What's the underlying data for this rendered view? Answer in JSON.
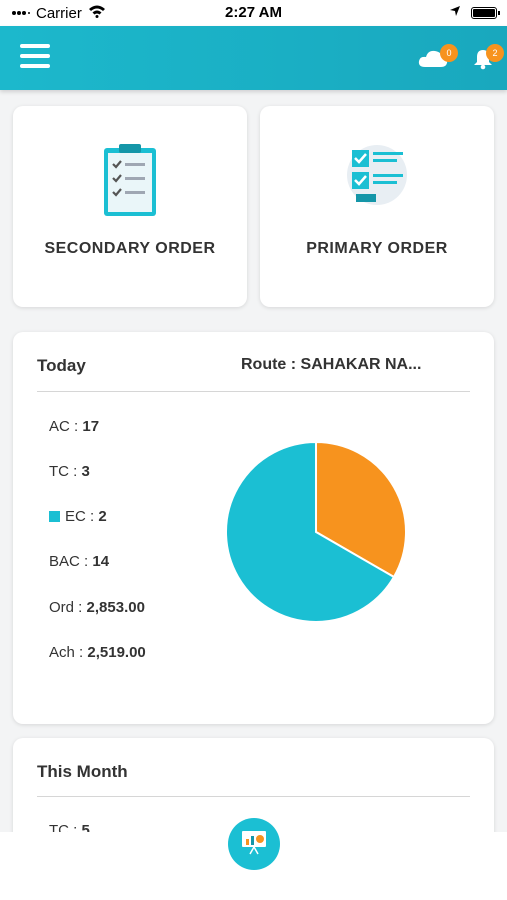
{
  "status_bar": {
    "carrier": "Carrier",
    "time": "2:27 AM"
  },
  "header": {
    "menu_icon": "hamburger-icon",
    "sync_icon": "cloud-icon",
    "sync_badge": "0",
    "notif_icon": "bell-icon",
    "notif_badge": "2"
  },
  "orders": {
    "secondary_label": "SECONDARY ORDER",
    "primary_label": "PRIMARY ORDER"
  },
  "today": {
    "title": "Today",
    "route": "Route : SAHAKAR NA...",
    "stats": [
      {
        "label": "AC",
        "value": "17"
      },
      {
        "label": "TC",
        "value": "3"
      },
      {
        "label": "EC",
        "value": "2"
      },
      {
        "label": "BAC",
        "value": "14"
      },
      {
        "label": "Ord",
        "value": "2,853.00"
      },
      {
        "label": "Ach",
        "value": "2,519.00"
      }
    ]
  },
  "chart_data": {
    "type": "pie",
    "slices": [
      {
        "value": 2,
        "color": "#f7931e"
      },
      {
        "value": 4,
        "color": "#1bbfd3"
      }
    ]
  },
  "month": {
    "title": "This Month",
    "stats": [
      {
        "label": "TC",
        "value": "5"
      }
    ]
  },
  "fab": {
    "icon": "presentation-chart-icon"
  },
  "colors": {
    "brand": "#1bbfd3",
    "accent": "#f7931e"
  }
}
